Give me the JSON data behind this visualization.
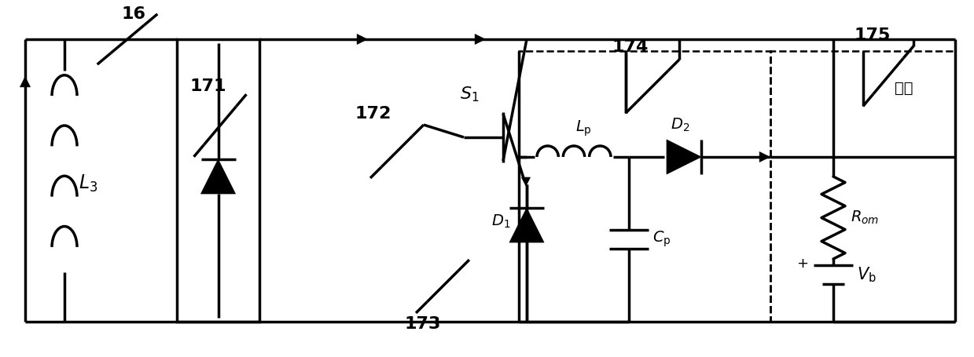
{
  "bg": "#ffffff",
  "lc": "#000000",
  "lw": 2.5,
  "labels": {
    "L3": "$L_3$",
    "16": "16",
    "171": "171",
    "172": "172",
    "173": "173",
    "174": "174",
    "175": "175",
    "S1": "$S_1$",
    "D1": "$D_1$",
    "D2": "$D_2$",
    "Lp": "$L_\\mathrm{p}$",
    "Cp": "$C_\\mathrm{p}$",
    "Rom": "$R_{om}$",
    "Vb": "$V_\\mathrm{b}$",
    "battery": "电池"
  }
}
